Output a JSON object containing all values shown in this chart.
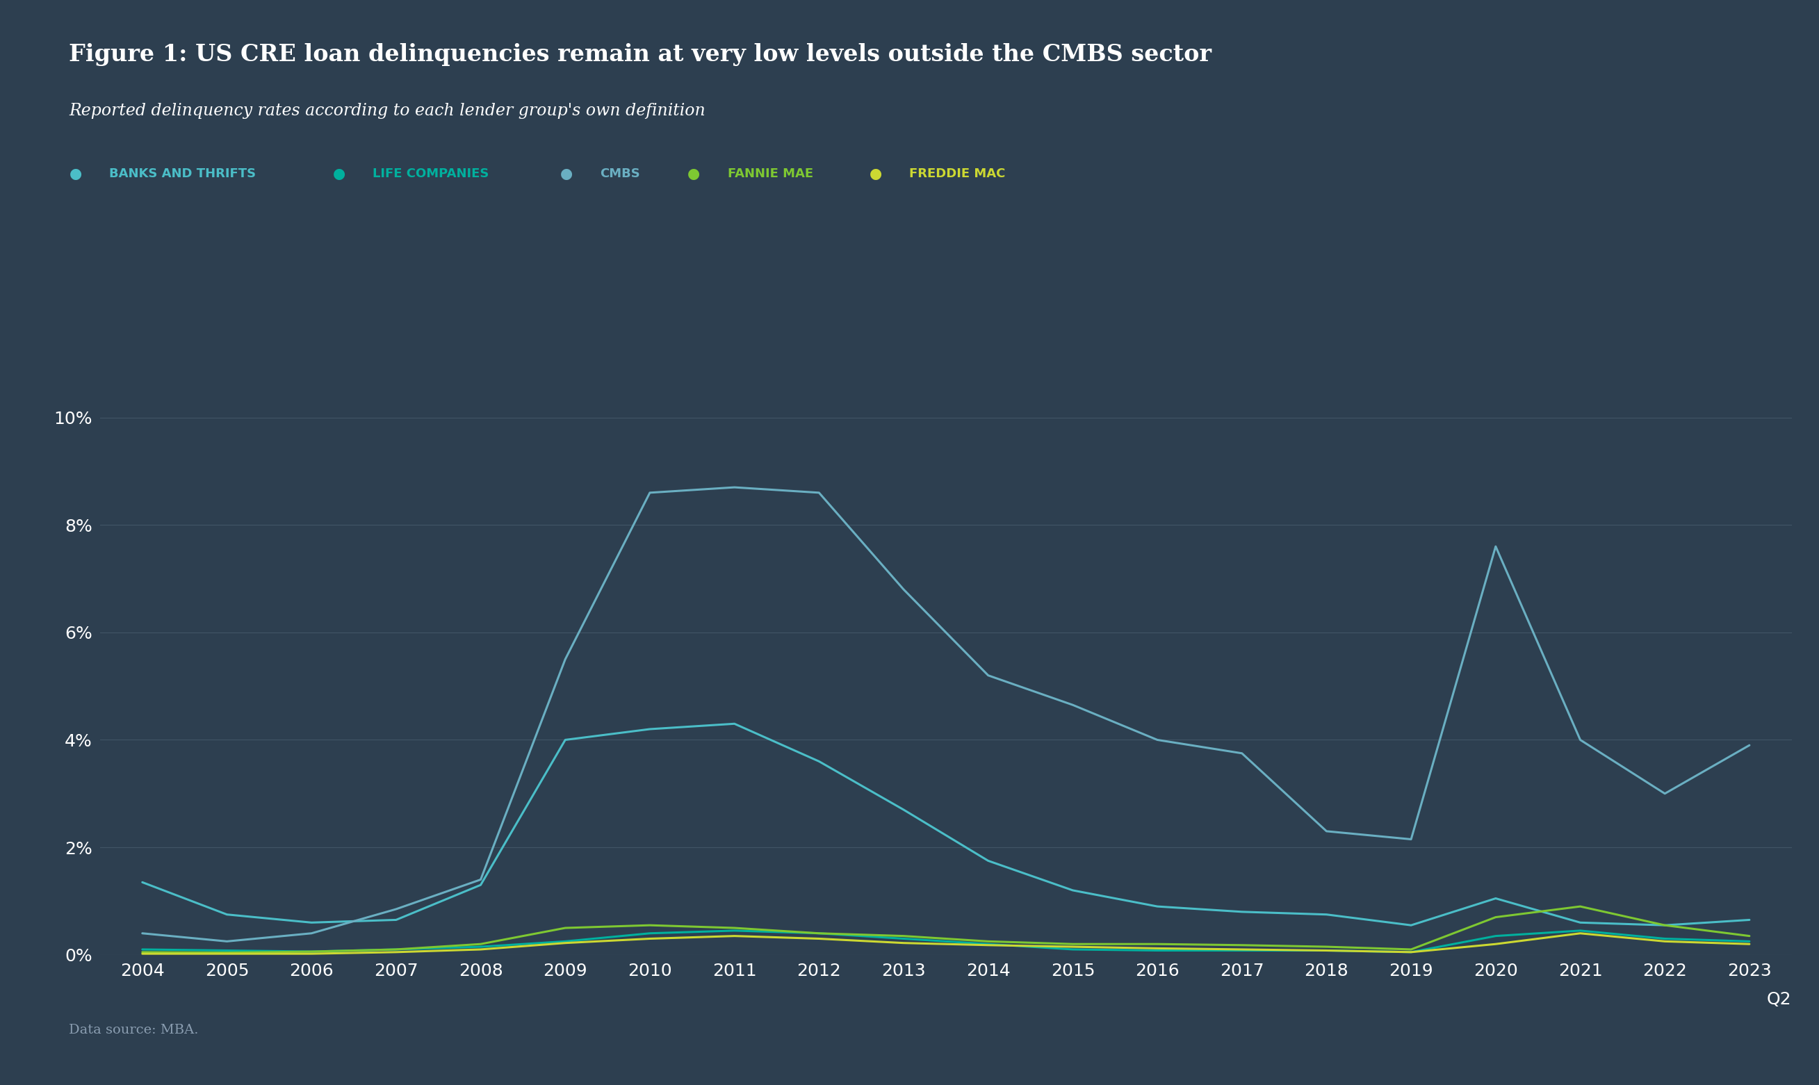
{
  "title": "Figure 1: US CRE loan delinquencies remain at very low levels outside the CMBS sector",
  "subtitle": "Reported delinquency rates according to each lender group's own definition",
  "source": "Data source: MBA.",
  "background_color": "#2d3f50",
  "text_color": "#ffffff",
  "grid_color": "#415566",
  "years": [
    2004,
    2005,
    2006,
    2007,
    2008,
    2009,
    2010,
    2011,
    2012,
    2013,
    2014,
    2015,
    2016,
    2017,
    2018,
    2019,
    2020,
    2021,
    2022,
    2023
  ],
  "series": [
    {
      "name": "BANKS AND THRIFTS",
      "color": "#4bbec8",
      "values": [
        0.0135,
        0.0075,
        0.006,
        0.0065,
        0.013,
        0.04,
        0.042,
        0.043,
        0.036,
        0.027,
        0.0175,
        0.012,
        0.009,
        0.008,
        0.0075,
        0.0055,
        0.0105,
        0.006,
        0.0055,
        0.0065
      ]
    },
    {
      "name": "LIFE COMPANIES",
      "color": "#00b09e",
      "values": [
        0.001,
        0.0008,
        0.0006,
        0.001,
        0.0015,
        0.0025,
        0.004,
        0.0045,
        0.004,
        0.003,
        0.002,
        0.001,
        0.0008,
        0.0008,
        0.0008,
        0.0005,
        0.0035,
        0.0045,
        0.003,
        0.0025
      ]
    },
    {
      "name": "CMBS",
      "color": "#6aafc2",
      "values": [
        0.004,
        0.0025,
        0.004,
        0.0085,
        0.014,
        0.055,
        0.086,
        0.087,
        0.086,
        0.068,
        0.052,
        0.0465,
        0.04,
        0.0375,
        0.023,
        0.0215,
        0.076,
        0.04,
        0.03,
        0.039
      ]
    },
    {
      "name": "FANNIE MAE",
      "color": "#7ec832",
      "values": [
        0.0005,
        0.0004,
        0.0006,
        0.001,
        0.002,
        0.005,
        0.0055,
        0.005,
        0.004,
        0.0035,
        0.0025,
        0.002,
        0.002,
        0.0018,
        0.0015,
        0.001,
        0.007,
        0.009,
        0.0055,
        0.0035
      ]
    },
    {
      "name": "FREDDIE MAC",
      "color": "#ccd832",
      "values": [
        0.0002,
        0.0002,
        0.0002,
        0.0005,
        0.001,
        0.0022,
        0.003,
        0.0035,
        0.003,
        0.0022,
        0.0018,
        0.0015,
        0.0012,
        0.001,
        0.0008,
        0.0005,
        0.002,
        0.004,
        0.0025,
        0.002
      ]
    }
  ],
  "ylim": [
    0,
    0.105
  ],
  "yticks": [
    0,
    0.02,
    0.04,
    0.06,
    0.08,
    0.1
  ],
  "yticklabels": [
    "0%",
    "2%",
    "4%",
    "6%",
    "8%",
    "10%"
  ],
  "x_last_label": "Q2"
}
